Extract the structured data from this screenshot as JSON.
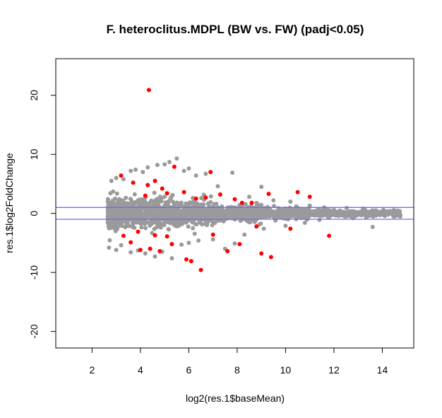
{
  "chart_data": {
    "type": "scatter",
    "title": "F. heteroclitus.MDPL (BW vs. FW) (padj<0.05)",
    "xlabel": "log2(res.1$baseMean)",
    "ylabel": "res.1$log2FoldChange",
    "xlim": [
      0.5,
      15.3
    ],
    "ylim": [
      -22.8,
      26.2
    ],
    "xticks": [
      2,
      4,
      6,
      8,
      10,
      12,
      14
    ],
    "yticks": [
      -20,
      -10,
      0,
      10,
      20
    ],
    "grid": false,
    "legend": "none",
    "hlines": [
      {
        "y": 1,
        "color": "#6b6bff"
      },
      {
        "y": -1,
        "color": "#6b6bff"
      }
    ],
    "series": [
      {
        "color": "#9a9a9a",
        "points": [
          [
            2.8,
            5.5
          ],
          [
            3.0,
            6.0
          ],
          [
            3.3,
            5.8
          ],
          [
            3.6,
            7.2
          ],
          [
            3.8,
            7.4
          ],
          [
            4.1,
            7.0
          ],
          [
            4.3,
            7.8
          ],
          [
            4.7,
            8.2
          ],
          [
            5.0,
            8.3
          ],
          [
            5.2,
            8.7
          ],
          [
            5.5,
            9.3
          ],
          [
            5.8,
            7.2
          ],
          [
            6.0,
            7.6
          ],
          [
            6.3,
            6.4
          ],
          [
            6.7,
            6.7
          ],
          [
            7.2,
            4.6
          ],
          [
            7.8,
            6.9
          ],
          [
            8.5,
            2.8
          ],
          [
            9.0,
            4.5
          ],
          [
            9.5,
            2.2
          ],
          [
            10.2,
            2.0
          ],
          [
            11.0,
            1.3
          ],
          [
            11.6,
            1.0
          ],
          [
            12.0,
            0.6
          ],
          [
            12.6,
            0.3
          ],
          [
            13.2,
            0.8
          ],
          [
            14.0,
            0.4
          ],
          [
            14.7,
            -0.2
          ],
          [
            13.6,
            -2.3
          ],
          [
            12.8,
            -0.8
          ],
          [
            2.7,
            -5.8
          ],
          [
            3.0,
            -6.2
          ],
          [
            3.2,
            -5.4
          ],
          [
            3.6,
            -6.6
          ],
          [
            3.9,
            -6.3
          ],
          [
            4.2,
            -6.8
          ],
          [
            4.6,
            -7.3
          ],
          [
            4.9,
            -6.5
          ],
          [
            5.3,
            -7.6
          ],
          [
            5.7,
            -5.3
          ],
          [
            6.0,
            -5.0
          ],
          [
            6.4,
            -4.6
          ],
          [
            7.0,
            -4.4
          ],
          [
            7.5,
            -6.0
          ],
          [
            7.9,
            -5.1
          ],
          [
            8.3,
            -3.6
          ],
          [
            9.1,
            -2.6
          ],
          [
            10.0,
            -2.1
          ],
          [
            10.8,
            -1.6
          ],
          [
            11.4,
            -1.1
          ]
        ]
      },
      {
        "color": "#ff0000",
        "points": [
          [
            4.35,
            20.9
          ],
          [
            3.2,
            6.4
          ],
          [
            3.7,
            5.2
          ],
          [
            4.3,
            4.8
          ],
          [
            4.6,
            5.5
          ],
          [
            4.9,
            4.2
          ],
          [
            5.4,
            7.9
          ],
          [
            5.8,
            3.6
          ],
          [
            6.3,
            2.5
          ],
          [
            6.9,
            7.0
          ],
          [
            7.3,
            3.2
          ],
          [
            7.9,
            2.4
          ],
          [
            8.6,
            1.8
          ],
          [
            9.3,
            3.3
          ],
          [
            10.5,
            3.6
          ],
          [
            11.0,
            2.8
          ],
          [
            11.8,
            -3.8
          ],
          [
            9.4,
            -7.4
          ],
          [
            9.0,
            -6.8
          ],
          [
            8.1,
            -5.2
          ],
          [
            7.6,
            -6.4
          ],
          [
            6.5,
            -9.6
          ],
          [
            6.1,
            -8.1
          ],
          [
            5.9,
            -7.8
          ],
          [
            5.3,
            -5.2
          ],
          [
            4.8,
            -6.4
          ],
          [
            4.4,
            -6.0
          ],
          [
            4.0,
            -6.2
          ],
          [
            3.6,
            -4.9
          ],
          [
            3.3,
            -3.8
          ],
          [
            3.9,
            -3.1
          ],
          [
            4.6,
            -3.7
          ],
          [
            5.1,
            -3.9
          ],
          [
            7.0,
            -3.6
          ],
          [
            8.8,
            -2.2
          ],
          [
            10.2,
            -2.6
          ],
          [
            4.2,
            3.0
          ],
          [
            5.1,
            3.4
          ],
          [
            6.7,
            2.7
          ],
          [
            8.2,
            1.8
          ]
        ]
      }
    ]
  }
}
